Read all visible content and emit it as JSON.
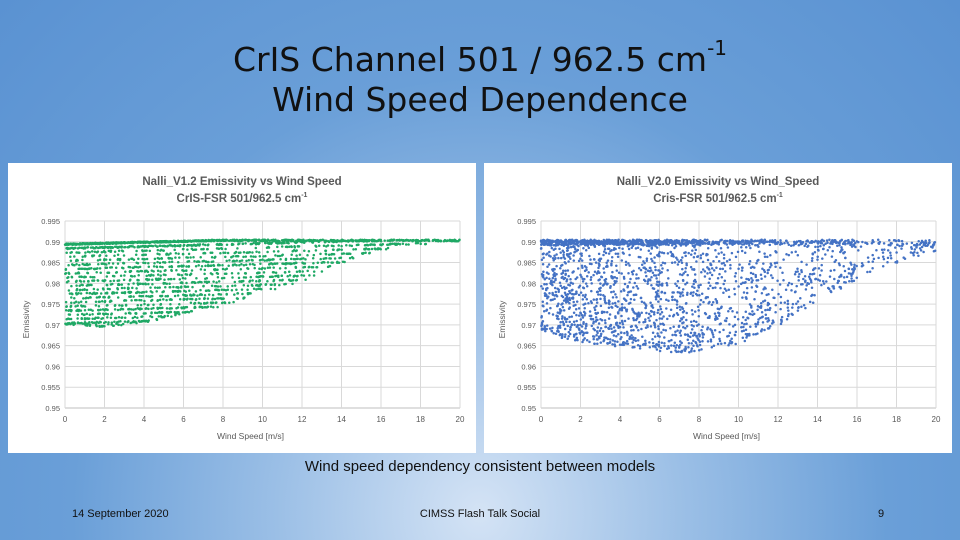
{
  "slide": {
    "title_line1": "CrIS Channel 501 / 962.5 cm",
    "title_sup": "-1",
    "title_line2": "Wind Speed Dependence",
    "caption": "Wind speed dependency consistent between models",
    "footer_date": "14 September 2020",
    "footer_center": "CIMSS Flash Talk Social",
    "page_number": "9"
  },
  "chart_data": [
    {
      "type": "scatter",
      "title": "Nalli_V1.2 Emissivity vs Wind Speed",
      "subtitle": "CrIS-FSR 501/962.5 cm",
      "subtitle_sup": "-1",
      "xlabel": "Wind Speed [m/s]",
      "ylabel": "Emissivity",
      "xlim": [
        0,
        20
      ],
      "ylim": [
        0.95,
        0.995
      ],
      "xticks": [
        "0",
        "2",
        "4",
        "6",
        "8",
        "10",
        "12",
        "14",
        "16",
        "18",
        "20"
      ],
      "yticks": [
        "0.995",
        "0.99",
        "0.985",
        "0.98",
        "0.975",
        "0.97",
        "0.965",
        "0.96",
        "0.955",
        "0.95"
      ],
      "grid": true,
      "color": "#1fa865",
      "pattern": "banded",
      "envelope": [
        [
          0.0,
          0.97
        ],
        [
          2.0,
          0.9695
        ],
        [
          4.0,
          0.9705
        ],
        [
          6.0,
          0.9725
        ],
        [
          8.0,
          0.9745
        ],
        [
          10.0,
          0.9775
        ],
        [
          12.0,
          0.98
        ],
        [
          14.0,
          0.984
        ],
        [
          16.0,
          0.987
        ],
        [
          18.0,
          0.988
        ],
        [
          20.0,
          0.989
        ]
      ],
      "max_value": 0.9905,
      "series": [
        {
          "x": [
            0.5,
            1.0,
            2.0,
            3.0,
            4.0,
            5.0,
            6.0,
            7.0,
            8.0,
            9.0,
            10.0,
            11.0,
            12.0,
            13.0,
            14.0,
            15.0,
            16.0,
            17.0,
            18.0,
            19.0,
            20.0
          ],
          "y": [
            0.97,
            0.97,
            0.9695,
            0.97,
            0.9705,
            0.971,
            0.9725,
            0.9735,
            0.9745,
            0.976,
            0.9775,
            0.979,
            0.98,
            0.982,
            0.984,
            0.9855,
            0.987,
            0.9875,
            0.988,
            0.9885,
            0.989
          ]
        }
      ]
    },
    {
      "type": "scatter",
      "title": "Nalli_V2.0 Emissivity vs Wind_Speed",
      "subtitle": "Cris-FSR 501/962.5 cm",
      "subtitle_sup": "-1",
      "xlabel": "Wind Speed [m/s]",
      "ylabel": "Emissivity",
      "xlim": [
        0,
        20
      ],
      "ylim": [
        0.95,
        0.995
      ],
      "xticks": [
        "0",
        "2",
        "4",
        "6",
        "8",
        "10",
        "12",
        "14",
        "16",
        "18",
        "20"
      ],
      "yticks": [
        "0.995",
        "0.99",
        "0.985",
        "0.98",
        "0.975",
        "0.97",
        "0.965",
        "0.96",
        "0.955",
        "0.95"
      ],
      "grid": true,
      "color": "#4472c4",
      "pattern": "diffuse",
      "envelope": [
        [
          0.0,
          0.969
        ],
        [
          1.0,
          0.967
        ],
        [
          2.0,
          0.966
        ],
        [
          3.0,
          0.9655
        ],
        [
          4.0,
          0.965
        ],
        [
          6.0,
          0.964
        ],
        [
          7.0,
          0.963
        ],
        [
          8.0,
          0.964
        ],
        [
          10.0,
          0.9655
        ],
        [
          12.0,
          0.97
        ],
        [
          14.0,
          0.976
        ],
        [
          16.0,
          0.981
        ],
        [
          18.0,
          0.985
        ],
        [
          20.0,
          0.988
        ]
      ],
      "max_value": 0.9905,
      "series": [
        {
          "x": [
            0.5,
            1.0,
            2.0,
            3.0,
            4.0,
            6.0,
            7.0,
            8.0,
            10.0,
            12.0,
            14.0,
            16.0,
            18.0,
            20.0
          ],
          "y": [
            0.969,
            0.967,
            0.966,
            0.9655,
            0.965,
            0.964,
            0.963,
            0.964,
            0.9655,
            0.97,
            0.976,
            0.981,
            0.985,
            0.988
          ]
        }
      ]
    }
  ]
}
